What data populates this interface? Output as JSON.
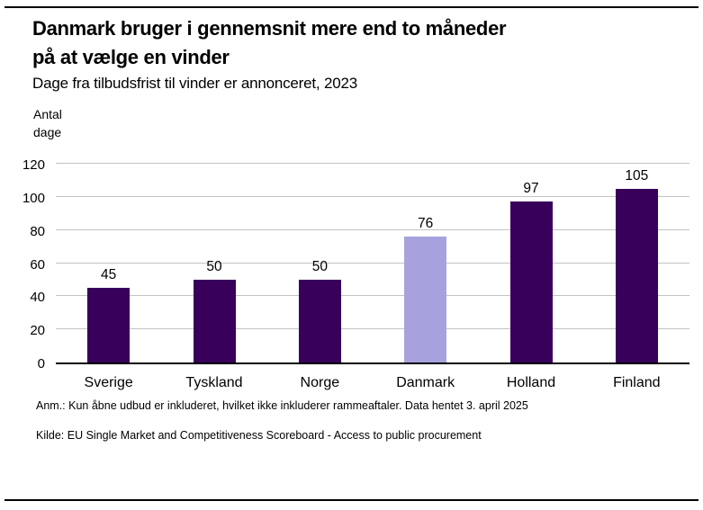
{
  "header": {
    "title_line1": "Danmark bruger i gennemsnit mere end to måneder",
    "title_line2": "på at vælge en vinder",
    "subtitle": "Dage fra tilbudsfrist til vinder er annonceret, 2023"
  },
  "chart_data": {
    "type": "bar",
    "title": "Danmark bruger i gennemsnit mere end to måneder på at vælge en vinder",
    "subtitle": "Dage fra tilbudsfrist til vinder er annonceret, 2023",
    "ylabel": "Antal dage",
    "ylabel_display": "Antal\ndage",
    "xlabel": "",
    "categories": [
      "Sverige",
      "Tyskland",
      "Norge",
      "Danmark",
      "Holland",
      "Finland"
    ],
    "values": [
      45,
      50,
      50,
      76,
      97,
      105
    ],
    "ylim": [
      0,
      120
    ],
    "yticks": [
      0,
      20,
      40,
      60,
      80,
      100,
      120
    ],
    "grid": "horizontal",
    "legend_position": "none",
    "bar_color_default": "#38005A",
    "bar_color_highlight": "#A7A2DD",
    "highlighted_category": "Danmark",
    "gridline_color": "#c3c3c3",
    "axis_color": "#000000"
  },
  "footnotes": {
    "note": "Anm.: Kun åbne udbud er inkluderet, hvilket ikke inkluderer rammeaftaler. Data hentet 3. april 2025",
    "source": "Kilde: EU Single Market and Competitiveness Scoreboard - Access to public procurement"
  }
}
